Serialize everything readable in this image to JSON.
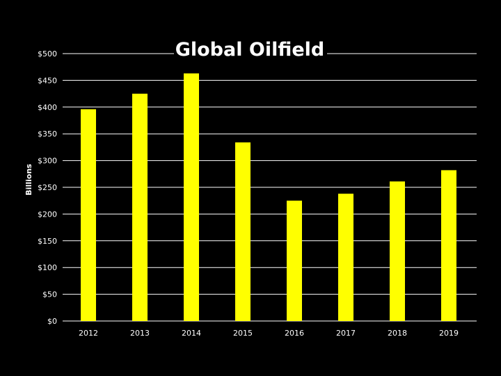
{
  "chart_data": {
    "type": "bar",
    "title": "Global Oilfield",
    "xlabel": "",
    "ylabel": "Billions",
    "categories": [
      "2012",
      "2013",
      "2014",
      "2015",
      "2016",
      "2017",
      "2018",
      "2019"
    ],
    "values": [
      396,
      425,
      463,
      334,
      225,
      238,
      261,
      282
    ],
    "ylim": [
      0,
      500
    ],
    "yticks": [
      0,
      50,
      100,
      150,
      200,
      250,
      300,
      350,
      400,
      450,
      500
    ],
    "ytick_labels": [
      "$0",
      "$50",
      "$100",
      "$150",
      "$200",
      "$250",
      "$300",
      "$350",
      "$400",
      "$450",
      "$500"
    ],
    "grid": true,
    "legend": "none",
    "colors": {
      "bar": "#ffff00",
      "background": "#000000",
      "grid": "#ffffff",
      "text": "#ffffff"
    }
  }
}
